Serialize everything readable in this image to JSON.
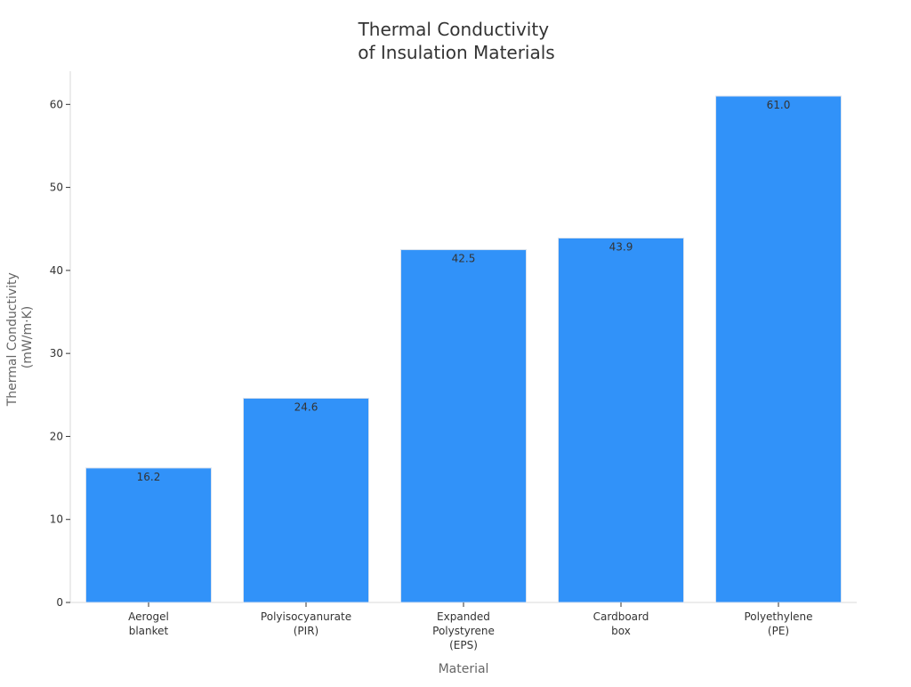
{
  "chart_data": {
    "type": "bar",
    "title": [
      "Thermal Conductivity",
      "of Insulation Materials"
    ],
    "xlabel": "Material",
    "ylabel": [
      "Thermal Conductivity",
      "(mW/m·K)"
    ],
    "categories": [
      [
        "Aerogel",
        "blanket"
      ],
      [
        "Polyisocyanurate",
        "(PIR)"
      ],
      [
        "Expanded",
        "Polystyrene",
        "(EPS)"
      ],
      [
        "Cardboard",
        "box"
      ],
      [
        "Polyethylene",
        "(PE)"
      ]
    ],
    "values": [
      16.2,
      24.6,
      42.5,
      43.9,
      61.0
    ],
    "data_labels": [
      "16.2",
      "24.6",
      "42.5",
      "43.9",
      "61.0"
    ],
    "ylim": [
      0,
      64
    ],
    "yticks": [
      0,
      10,
      20,
      30,
      40,
      50,
      60
    ],
    "grid": false,
    "bar_color": "#3192f9",
    "bar_edge_color": "#d9e2ee"
  }
}
